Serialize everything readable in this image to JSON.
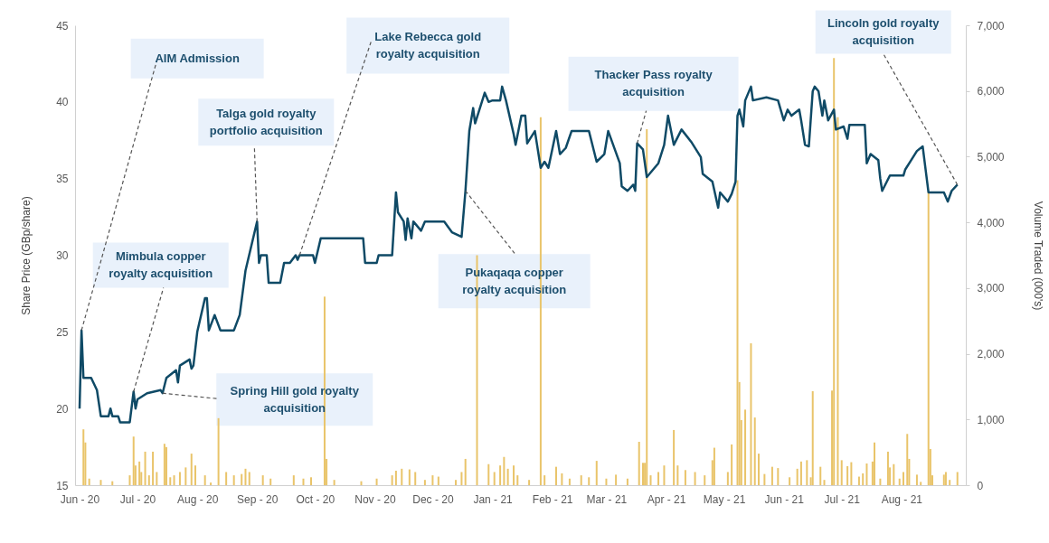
{
  "chart_data": {
    "type": "line",
    "ylabel": "Share Price (GBp/share)",
    "y2label": "Volume Traded (000's)",
    "xlim": [
      "2020-06-01",
      "2021-09-01"
    ],
    "xticks": [
      {
        "value": "2020-06-01",
        "label": "Jun - 20"
      },
      {
        "value": "2020-07-01",
        "label": "Jul - 20"
      },
      {
        "value": "2020-08-01",
        "label": "Aug - 20"
      },
      {
        "value": "2020-09-01",
        "label": "Sep - 20"
      },
      {
        "value": "2020-10-01",
        "label": "Oct - 20"
      },
      {
        "value": "2020-11-01",
        "label": "Nov - 20"
      },
      {
        "value": "2020-12-01",
        "label": "Dec - 20"
      },
      {
        "value": "2021-01-01",
        "label": "Jan - 21"
      },
      {
        "value": "2021-02-01",
        "label": "Feb - 21"
      },
      {
        "value": "2021-03-01",
        "label": "Mar - 21"
      },
      {
        "value": "2021-04-01",
        "label": "Apr - 21"
      },
      {
        "value": "2021-05-01",
        "label": "May - 21"
      },
      {
        "value": "2021-06-01",
        "label": "Jun - 21"
      },
      {
        "value": "2021-07-01",
        "label": "Jul - 21"
      },
      {
        "value": "2021-08-01",
        "label": "Aug - 21"
      }
    ],
    "ylim": [
      15,
      45
    ],
    "yticks": [
      15,
      20,
      25,
      30,
      35,
      40,
      45
    ],
    "y2lim": [
      0,
      7000
    ],
    "y2ticks": [
      {
        "value": 0,
        "label": "0"
      },
      {
        "value": 1000,
        "label": "1,000"
      },
      {
        "value": 2000,
        "label": "2,000"
      },
      {
        "value": 3000,
        "label": "3,000"
      },
      {
        "value": 4000,
        "label": "4,000"
      },
      {
        "value": 5000,
        "label": "5,000"
      },
      {
        "value": 6000,
        "label": "6,000"
      },
      {
        "value": 7000,
        "label": "7,000"
      }
    ],
    "grid": false,
    "series": [
      {
        "type": "bar",
        "axis": "y2",
        "color": "#e9c46a",
        "x": [
          "2020-06-03",
          "2020-06-04",
          "2020-06-06",
          "2020-06-12",
          "2020-06-18",
          "2020-06-27",
          "2020-06-29",
          "2020-06-30",
          "2020-07-02",
          "2020-07-03",
          "2020-07-05",
          "2020-07-07",
          "2020-07-09",
          "2020-07-11",
          "2020-07-15",
          "2020-07-16",
          "2020-07-18",
          "2020-07-20",
          "2020-07-23",
          "2020-07-26",
          "2020-07-29",
          "2020-07-31",
          "2020-08-05",
          "2020-08-08",
          "2020-08-12",
          "2020-08-16",
          "2020-08-20",
          "2020-08-24",
          "2020-08-26",
          "2020-08-28",
          "2020-09-04",
          "2020-09-08",
          "2020-09-20",
          "2020-09-25",
          "2020-09-29",
          "2020-10-06",
          "2020-10-07",
          "2020-10-11",
          "2020-10-25",
          "2020-11-02",
          "2020-11-10",
          "2020-11-12",
          "2020-11-15",
          "2020-11-19",
          "2020-11-22",
          "2020-11-27",
          "2020-12-01",
          "2020-12-04",
          "2020-12-13",
          "2020-12-16",
          "2020-12-18",
          "2020-12-24",
          "2020-12-30",
          "2021-01-02",
          "2021-01-05",
          "2021-01-07",
          "2021-01-09",
          "2021-01-12",
          "2021-01-14",
          "2021-01-20",
          "2021-01-26",
          "2021-01-28",
          "2021-02-03",
          "2021-02-06",
          "2021-02-10",
          "2021-02-16",
          "2021-02-20",
          "2021-02-24",
          "2021-03-01",
          "2021-03-06",
          "2021-03-12",
          "2021-03-18",
          "2021-03-20",
          "2021-03-21",
          "2021-03-22",
          "2021-03-24",
          "2021-03-28",
          "2021-03-31",
          "2021-04-05",
          "2021-04-07",
          "2021-04-11",
          "2021-04-16",
          "2021-04-21",
          "2021-04-25",
          "2021-04-26",
          "2021-05-03",
          "2021-05-05",
          "2021-05-08",
          "2021-05-09",
          "2021-05-10",
          "2021-05-12",
          "2021-05-15",
          "2021-05-17",
          "2021-05-19",
          "2021-05-22",
          "2021-05-26",
          "2021-05-29",
          "2021-06-04",
          "2021-06-08",
          "2021-06-10",
          "2021-06-13",
          "2021-06-15",
          "2021-06-16",
          "2021-06-20",
          "2021-06-22",
          "2021-06-26",
          "2021-06-27",
          "2021-06-29",
          "2021-07-01",
          "2021-07-04",
          "2021-07-06",
          "2021-07-10",
          "2021-07-12",
          "2021-07-14",
          "2021-07-17",
          "2021-07-18",
          "2021-07-21",
          "2021-07-25",
          "2021-07-26",
          "2021-07-28",
          "2021-07-31",
          "2021-08-02",
          "2021-08-04",
          "2021-08-05",
          "2021-08-09",
          "2021-08-11",
          "2021-08-15",
          "2021-08-16",
          "2021-08-17",
          "2021-08-23",
          "2021-08-24",
          "2021-08-26",
          "2021-08-30"
        ],
        "values": [
          850,
          650,
          100,
          80,
          60,
          150,
          740,
          300,
          360,
          200,
          510,
          150,
          510,
          200,
          630,
          580,
          120,
          150,
          200,
          270,
          480,
          300,
          150,
          40,
          1020,
          200,
          150,
          170,
          250,
          200,
          150,
          100,
          150,
          100,
          120,
          2870,
          400,
          80,
          60,
          100,
          150,
          220,
          250,
          240,
          200,
          80,
          150,
          130,
          80,
          200,
          400,
          3500,
          320,
          200,
          300,
          430,
          250,
          300,
          150,
          80,
          5600,
          150,
          280,
          180,
          100,
          150,
          120,
          370,
          100,
          160,
          100,
          660,
          340,
          340,
          5420,
          150,
          200,
          300,
          840,
          300,
          230,
          200,
          150,
          380,
          570,
          200,
          620,
          4640,
          1570,
          990,
          1150,
          2160,
          1030,
          480,
          170,
          280,
          260,
          120,
          250,
          360,
          380,
          120,
          1430,
          280,
          80,
          1440,
          6500,
          5600,
          380,
          290,
          350,
          130,
          180,
          330,
          360,
          650,
          100,
          510,
          270,
          320,
          100,
          200,
          780,
          400,
          160,
          50,
          4470,
          550,
          150,
          160,
          200,
          80,
          200
        ]
      },
      {
        "color": "#0f4a66",
        "x": [
          "2020-06-01",
          "2020-06-02",
          "2020-06-03",
          "2020-06-07",
          "2020-06-10",
          "2020-06-12",
          "2020-06-16",
          "2020-06-17",
          "2020-06-18",
          "2020-06-21",
          "2020-06-22",
          "2020-06-27",
          "2020-06-29",
          "2020-06-30",
          "2020-07-01",
          "2020-07-06",
          "2020-07-13",
          "2020-07-14",
          "2020-07-16",
          "2020-07-21",
          "2020-07-22",
          "2020-07-23",
          "2020-07-28",
          "2020-07-29",
          "2020-07-30",
          "2020-08-01",
          "2020-08-05",
          "2020-08-06",
          "2020-08-07",
          "2020-08-10",
          "2020-08-13",
          "2020-08-20",
          "2020-08-23",
          "2020-08-26",
          "2020-09-01",
          "2020-09-02",
          "2020-09-03",
          "2020-09-06",
          "2020-09-07",
          "2020-09-13",
          "2020-09-15",
          "2020-09-18",
          "2020-09-21",
          "2020-09-22",
          "2020-09-23",
          "2020-09-30",
          "2020-10-01",
          "2020-10-04",
          "2020-10-26",
          "2020-10-27",
          "2020-11-02",
          "2020-11-03",
          "2020-11-10",
          "2020-11-12",
          "2020-11-13",
          "2020-11-16",
          "2020-11-17",
          "2020-11-18",
          "2020-11-20",
          "2020-11-21",
          "2020-11-25",
          "2020-11-27",
          "2020-12-07",
          "2020-12-11",
          "2020-12-16",
          "2020-12-18",
          "2020-12-20",
          "2020-12-22",
          "2020-12-23",
          "2020-12-28",
          "2020-12-30",
          "2021-01-01",
          "2021-01-05",
          "2021-01-06",
          "2021-01-08",
          "2021-01-12",
          "2021-01-13",
          "2021-01-16",
          "2021-01-18",
          "2021-01-19",
          "2021-01-23",
          "2021-01-26",
          "2021-01-28",
          "2021-01-30",
          "2021-02-03",
          "2021-02-05",
          "2021-02-08",
          "2021-02-11",
          "2021-02-20",
          "2021-02-24",
          "2021-02-28",
          "2021-03-02",
          "2021-03-08",
          "2021-03-09",
          "2021-03-12",
          "2021-03-15",
          "2021-03-16",
          "2021-03-17",
          "2021-03-20",
          "2021-03-22",
          "2021-03-28",
          "2021-03-31",
          "2021-04-02",
          "2021-04-05",
          "2021-04-09",
          "2021-04-14",
          "2021-04-19",
          "2021-04-20",
          "2021-04-25",
          "2021-04-28",
          "2021-04-29",
          "2021-05-03",
          "2021-05-05",
          "2021-05-07",
          "2021-05-08",
          "2021-05-09",
          "2021-05-11",
          "2021-05-12",
          "2021-05-15",
          "2021-05-16",
          "2021-05-23",
          "2021-05-29",
          "2021-06-01",
          "2021-06-03",
          "2021-06-05",
          "2021-06-09",
          "2021-06-10",
          "2021-06-12",
          "2021-06-14",
          "2021-06-16",
          "2021-06-17",
          "2021-06-19",
          "2021-06-21",
          "2021-06-22",
          "2021-06-24",
          "2021-06-27",
          "2021-06-28",
          "2021-07-02",
          "2021-07-04",
          "2021-07-05",
          "2021-07-13",
          "2021-07-14",
          "2021-07-16",
          "2021-07-20",
          "2021-07-21",
          "2021-07-22",
          "2021-07-26",
          "2021-08-02",
          "2021-08-03",
          "2021-08-06",
          "2021-08-09",
          "2021-08-12",
          "2021-08-15",
          "2021-08-23",
          "2021-08-25",
          "2021-08-27",
          "2021-08-30"
        ],
        "values": [
          20.0,
          25.1,
          22.0,
          22.0,
          21.2,
          19.5,
          19.5,
          20.0,
          19.5,
          19.5,
          19.1,
          19.1,
          21.1,
          20.0,
          20.6,
          21.0,
          21.2,
          21.0,
          22.0,
          22.5,
          21.7,
          22.8,
          23.2,
          22.6,
          22.8,
          25.0,
          27.2,
          27.2,
          25.1,
          26.1,
          25.1,
          25.1,
          26.1,
          29.0,
          32.2,
          29.5,
          30.0,
          30.0,
          28.2,
          28.2,
          29.5,
          29.5,
          30.0,
          29.7,
          30.0,
          30.0,
          29.5,
          31.1,
          31.1,
          29.5,
          29.5,
          30.0,
          30.0,
          34.1,
          32.8,
          32.2,
          31.0,
          32.4,
          31.1,
          32.2,
          31.6,
          32.2,
          32.2,
          31.5,
          31.2,
          34.2,
          38.1,
          39.6,
          38.6,
          40.6,
          40.0,
          40.1,
          40.1,
          41.0,
          40.1,
          37.9,
          37.2,
          39.1,
          39.1,
          37.3,
          38.1,
          35.7,
          36.1,
          35.7,
          38.1,
          36.6,
          37.0,
          38.1,
          38.1,
          36.1,
          36.6,
          38.1,
          36.0,
          34.5,
          34.2,
          34.6,
          34.2,
          37.3,
          36.9,
          35.1,
          36.0,
          37.2,
          39.1,
          37.2,
          38.2,
          37.4,
          36.4,
          35.3,
          34.8,
          33.1,
          34.1,
          33.5,
          34.0,
          34.8,
          39.1,
          39.5,
          38.4,
          40.1,
          41.0,
          40.1,
          40.3,
          40.1,
          38.8,
          39.5,
          39.1,
          39.5,
          38.8,
          37.2,
          37.1,
          40.7,
          41.0,
          40.7,
          39.1,
          40.1,
          38.8,
          39.5,
          38.2,
          38.4,
          37.6,
          38.5,
          38.5,
          36.0,
          36.6,
          36.2,
          35.0,
          34.2,
          35.2,
          35.2,
          35.6,
          36.2,
          36.8,
          37.1,
          34.1,
          34.1,
          33.5,
          34.2,
          34.6
        ]
      }
    ],
    "annotations": [
      {
        "text": "AIM Admission",
        "x": "2020-06-02",
        "y": 25.1
      },
      {
        "text": "Mimbula copper royalty acquisition",
        "x": "2020-06-29",
        "y": 21.1
      },
      {
        "text": "Spring Hill gold royalty acquisition",
        "x": "2020-07-14",
        "y": 21.0
      },
      {
        "text": "Talga gold royalty portfolio acquisition",
        "x": "2020-09-01",
        "y": 32.2
      },
      {
        "text": "Lake Rebecca gold royalty acquisition",
        "x": "2020-09-23",
        "y": 30.0
      },
      {
        "text": "Pukaqaqa copper royalty acquisition",
        "x": "2020-12-18",
        "y": 34.2
      },
      {
        "text": "Thacker Pass royalty acquisition",
        "x": "2021-03-17",
        "y": 37.3
      },
      {
        "text": "Lincoln gold royalty acquisition",
        "x": "2021-08-30",
        "y": 34.6
      }
    ]
  }
}
